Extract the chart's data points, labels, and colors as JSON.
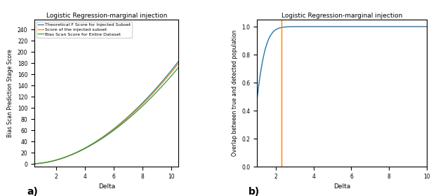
{
  "title": "Logistic Regression-marginal injection",
  "left": {
    "xlabel": "Delta",
    "ylabel": "Bias Scan Prediction Stage Score",
    "xlim": [
      0.5,
      10.5
    ],
    "ylim": [
      -5,
      258
    ],
    "yticks": [
      0,
      20,
      40,
      60,
      80,
      100,
      120,
      140,
      160,
      180,
      200,
      220,
      240
    ],
    "xticks": [
      2,
      4,
      6,
      8,
      10
    ],
    "legend": [
      "Theoretical F Score for Injected Subset",
      "Score of the injected subset",
      "Bias Scan Score for Entire Dataset"
    ],
    "line_colors": [
      "#1f77b4",
      "#ff7f0e",
      "#2ca02c"
    ]
  },
  "right": {
    "xlabel": "Delta",
    "ylabel": "Overlap between true and detected population",
    "xlim": [
      1,
      10
    ],
    "ylim": [
      0,
      1.05
    ],
    "yticks": [
      0.0,
      0.2,
      0.4,
      0.6,
      0.8,
      1.0
    ],
    "xticks": [
      2,
      4,
      6,
      8,
      10
    ],
    "line_color": "#1f77b4",
    "vline_x": 2.3,
    "vline_color": "#ff7f0e"
  },
  "label_a": "a)",
  "label_b": "b)"
}
